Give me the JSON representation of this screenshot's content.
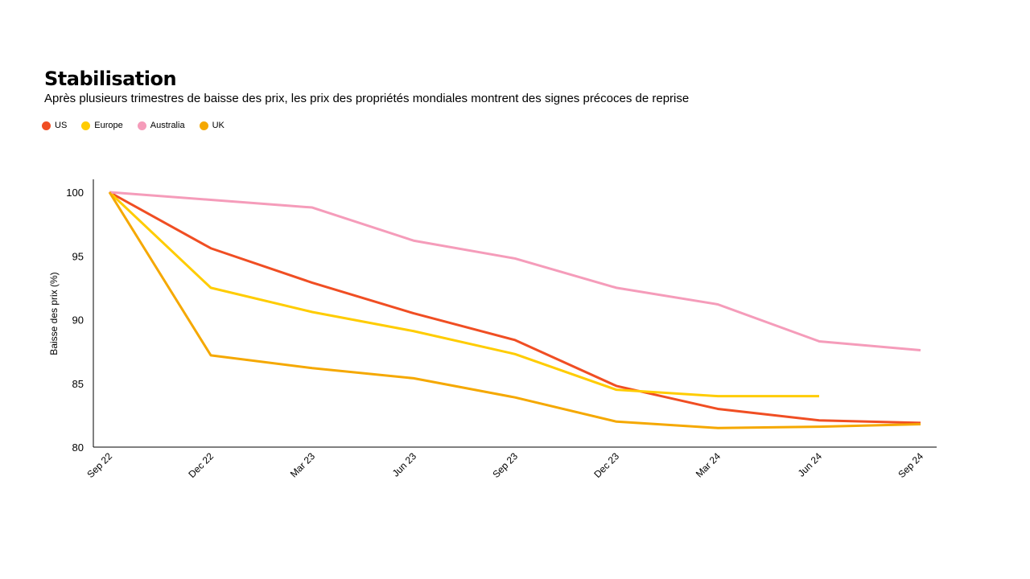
{
  "chart_data": {
    "type": "line",
    "title": "Stabilisation",
    "subtitle": "Après plusieurs trimestres de baisse des prix, les prix des propriétés mondiales montrent des signes précoces de reprise",
    "xlabel": "",
    "ylabel": "Baisse des prix (%)",
    "ylim": [
      80,
      101
    ],
    "yticks": [
      80,
      85,
      90,
      95,
      100
    ],
    "grid": false,
    "legend": "top-left",
    "categories": [
      "Sep 22",
      "Dec 22",
      "Mar 23",
      "Jun 23",
      "Sep 23",
      "Dec 23",
      "Mar 24",
      "Jun 24",
      "Sep 24"
    ],
    "series": [
      {
        "name": "US",
        "color": "#f04e23",
        "values": [
          100,
          95.6,
          92.9,
          90.5,
          88.4,
          84.8,
          83.0,
          82.1,
          81.9
        ]
      },
      {
        "name": "Europe",
        "color": "#ffcc00",
        "values": [
          100,
          92.5,
          90.6,
          89.1,
          87.3,
          84.5,
          84.0,
          84.0,
          null
        ]
      },
      {
        "name": "Australia",
        "color": "#f59cba",
        "values": [
          100,
          99.4,
          98.8,
          96.2,
          94.8,
          92.5,
          91.2,
          88.3,
          87.6
        ]
      },
      {
        "name": "UK",
        "color": "#f5a800",
        "values": [
          100,
          87.2,
          86.2,
          85.4,
          83.9,
          82.0,
          81.5,
          81.6,
          81.8
        ]
      }
    ]
  }
}
